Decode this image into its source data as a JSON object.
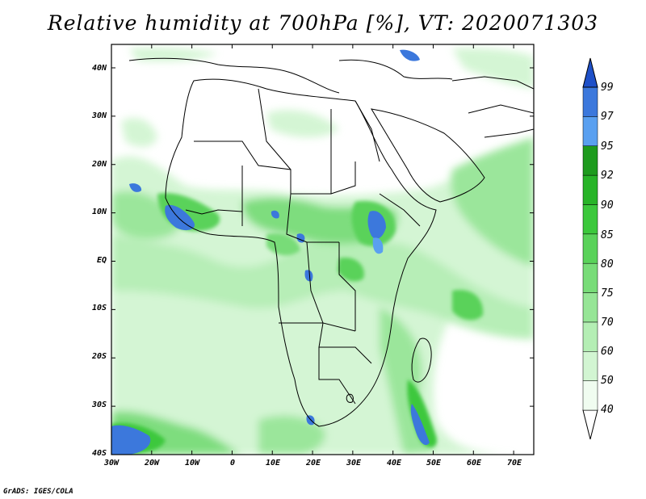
{
  "title": "Relative humidity at 700hPa [%], VT: 2020071303",
  "credit": "GrADS: IGES/COLA",
  "lat_labels": [
    "40N",
    "30N",
    "20N",
    "10N",
    "EQ",
    "10S",
    "20S",
    "30S",
    "40S"
  ],
  "lon_labels": [
    "30W",
    "20W",
    "10W",
    "0",
    "10E",
    "20E",
    "30E",
    "40E",
    "50E",
    "60E",
    "70E"
  ],
  "colorbar": {
    "labels": [
      "40",
      "50",
      "60",
      "70",
      "75",
      "80",
      "85",
      "90",
      "92",
      "95",
      "97",
      "99"
    ],
    "colors": [
      "#f0fcf0",
      "#d2f5d2",
      "#b4eeb4",
      "#96e596",
      "#78dc78",
      "#5ad25a",
      "#3cc83c",
      "#28b428",
      "#1e9b1e",
      "#5aa0f0",
      "#3c78dc",
      "#1e50c8"
    ]
  },
  "layout_colors": {
    "land_outline": "#000000",
    "frame": "#000000"
  }
}
